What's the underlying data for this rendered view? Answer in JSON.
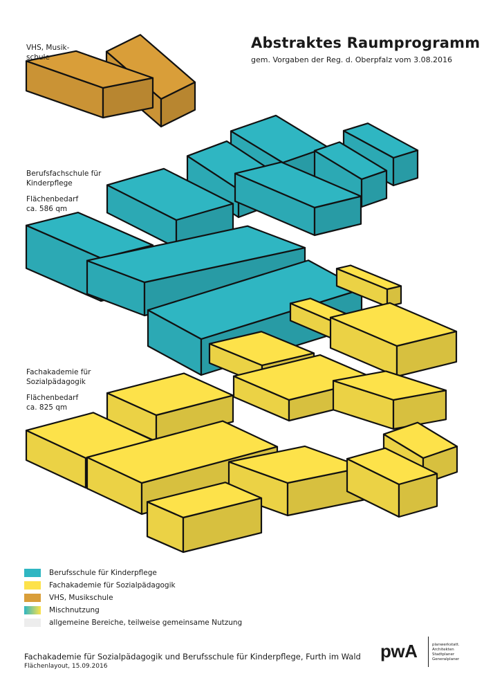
{
  "title": "Abstraktes Raumprogramm",
  "subtitle": "gem. Vorgaben der Reg. d. Oberpfalz vom 3.08.2016",
  "colors": {
    "teal": "#2fb6c2",
    "yellow": "#fde24a",
    "orange": "#d99e39",
    "general": "#ededed",
    "outline": "#111111"
  },
  "zones": {
    "vhs": {
      "lines": [
        "VHS, Musik-",
        "schule"
      ]
    },
    "berufsfach": {
      "lines": [
        "Berufsfachschule für",
        "Kinderpflege",
        "",
        "Flächenbedarf",
        "ca. 586 qm"
      ]
    },
    "fachakademie": {
      "lines": [
        "Fachakademie für",
        "Sozialpädagogik",
        "",
        "Flächenbedarf",
        "ca. 825 qm"
      ]
    }
  },
  "legend": [
    {
      "label": "Berufsschule für Kinderpflege",
      "color": "#2fb6c2"
    },
    {
      "label": "Fachakademie für Sozialpädagogik",
      "color": "#fde24a"
    },
    {
      "label": "VHS, Musikschule",
      "color": "#d99e39"
    },
    {
      "label": "Mischnutzung",
      "color": "gradient"
    },
    {
      "label": "allgemeine Bereiche, teilweise gemeinsame Nutzung",
      "color": "#ededed"
    }
  ],
  "footer": {
    "title": "Fachakademie für Sozialpädagogik und Berufsschule für Kinderpflege, Furth im Wald",
    "subtitle": "Flächenlayout, 15.09.2016"
  },
  "logo": {
    "text": "pwA",
    "meta": [
      "planwerkstatt.",
      "Architekten",
      "Stadtplaner",
      "Generalplaner"
    ]
  }
}
